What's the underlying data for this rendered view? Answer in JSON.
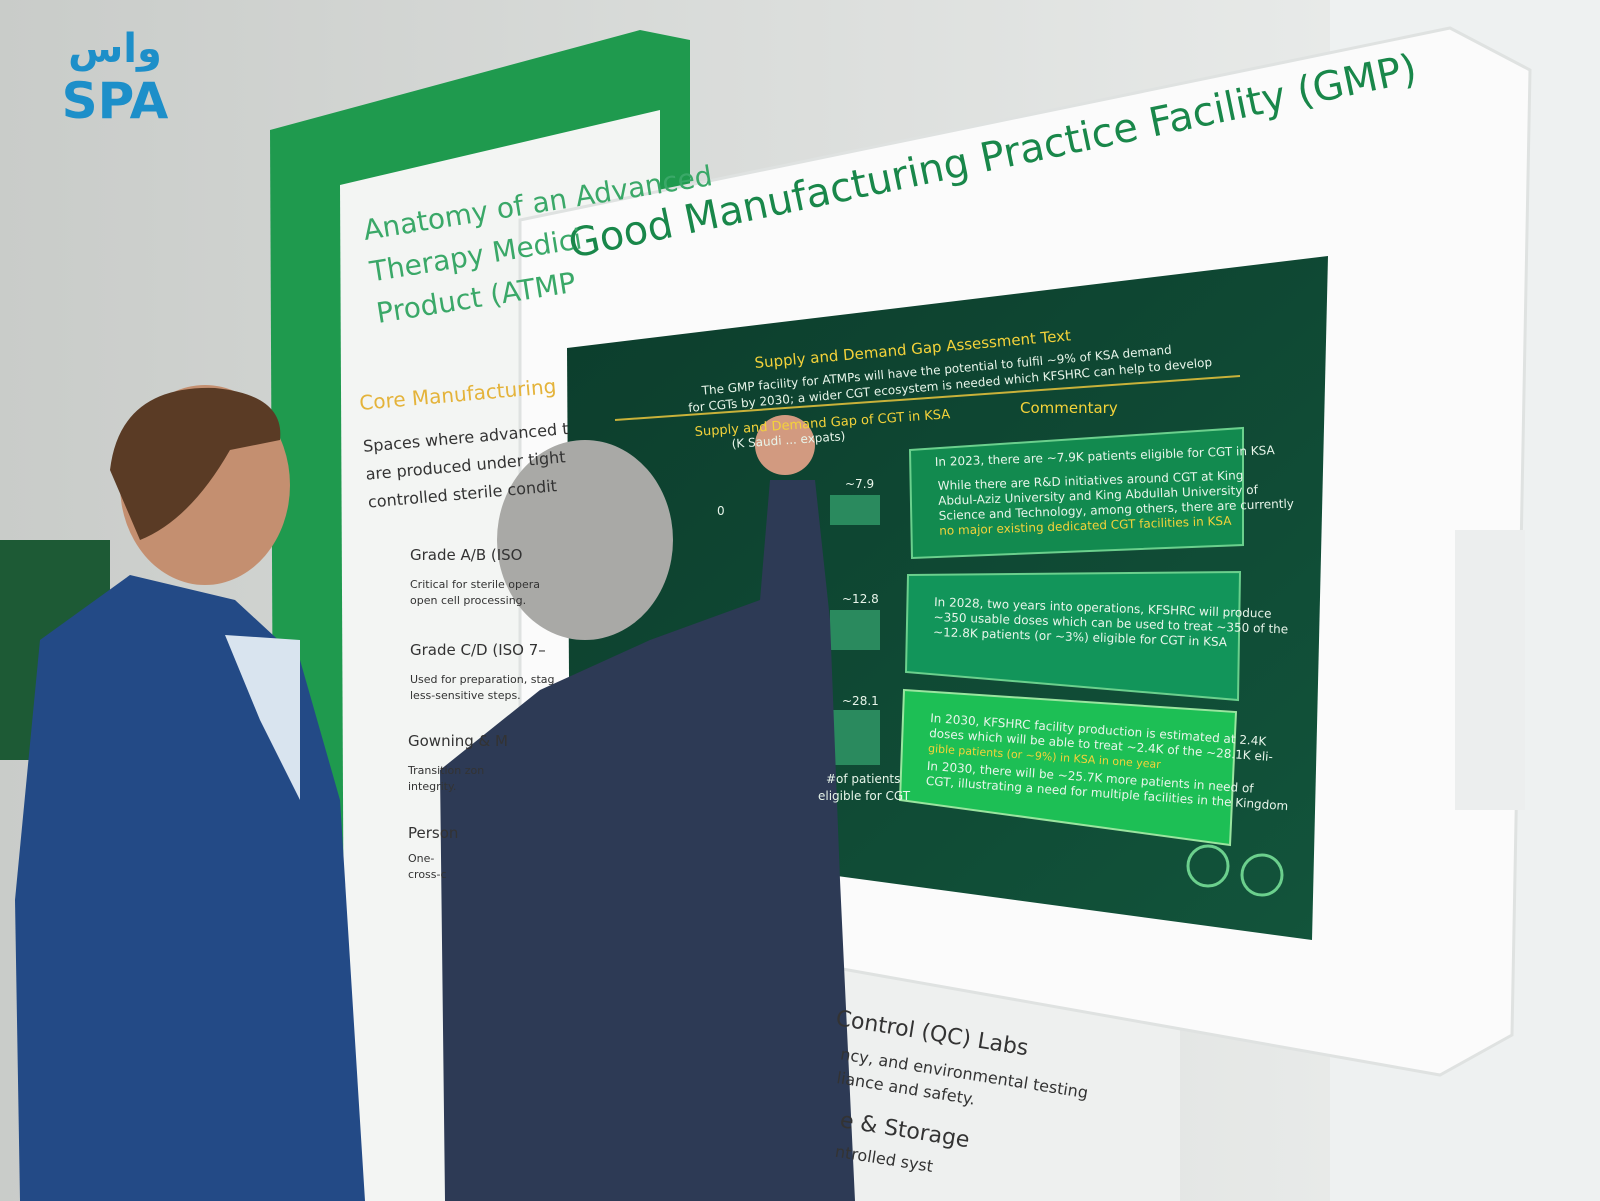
{
  "logo": {
    "arabic": "واس",
    "latin": "SPA"
  },
  "kiosk": {
    "heading": "Good Manufacturing Practice Facility (GMP)"
  },
  "left_panel": {
    "title": [
      "Anatomy of an Advanced",
      "Therapy Medici",
      "Product (ATMP"
    ],
    "section": "Core Manufacturing",
    "intro": [
      "Spaces where advanced t",
      "are produced under tight",
      "controlled sterile condit"
    ],
    "items": [
      {
        "name": "Grade A/B (ISO",
        "text": [
          "Critical for sterile opera",
          "open cell processing."
        ]
      },
      {
        "name": "Grade C/D (ISO 7–",
        "text": [
          "Used for preparation, stag",
          "less-sensitive steps."
        ]
      },
      {
        "name": "Gowning & M",
        "text": [
          "Transition zon",
          "integrity."
        ]
      },
      {
        "name": "Person",
        "text": [
          "One-",
          "cross-c"
        ]
      }
    ]
  },
  "lower_panel": {
    "lines": [
      "Control (QC) Labs",
      "ncy, and environmental testing",
      "liance and safety.",
      "e & Storage",
      "ntrolled syst"
    ]
  },
  "screen": {
    "title": "Supply and Demand Gap Assessment Text",
    "summary": [
      "The GMP facility for ATMPs will have the potential to fulfil ~9% of KSA demand",
      "for CGTs by 2030; a wider CGT ecosystem is needed which KFSHRC can help to develop"
    ],
    "chart_title": "Supply and Demand Gap of CGT in KSA",
    "chart_note": "(K Saudi ... expats)",
    "chart_labels": [
      "0",
      "~7.9",
      "~12.8",
      "~28.1"
    ],
    "axis_label": [
      "#of patients",
      "eligible for CGT"
    ],
    "commentary_title": "Commentary",
    "commentary": [
      [
        "In 2023, there are ~7.9K patients eligible for CGT in KSA",
        "While there are R&D initiatives around CGT at King",
        "Abdul-Aziz University and King Abdullah University of",
        "Science and Technology, among others, there are currently",
        "no major existing dedicated CGT facilities in KSA"
      ],
      [
        "In 2028, two years into operations, KFSHRC will produce",
        "~350 usable doses which can be used to treat ~350 of the",
        "~12.8K patients (or ~3%) eligible for CGT in KSA"
      ],
      [
        "In 2030, KFSHRC facility production is estimated at 2.4K",
        "doses which will be able to treat ~2.4K of the ~28.1K eli-",
        "gible patients (or ~9%) in KSA in one year",
        "In 2030, there will be ~25.7K more patients in need of",
        "CGT, illustrating a need for multiple facilities in the Kingdom"
      ]
    ]
  }
}
